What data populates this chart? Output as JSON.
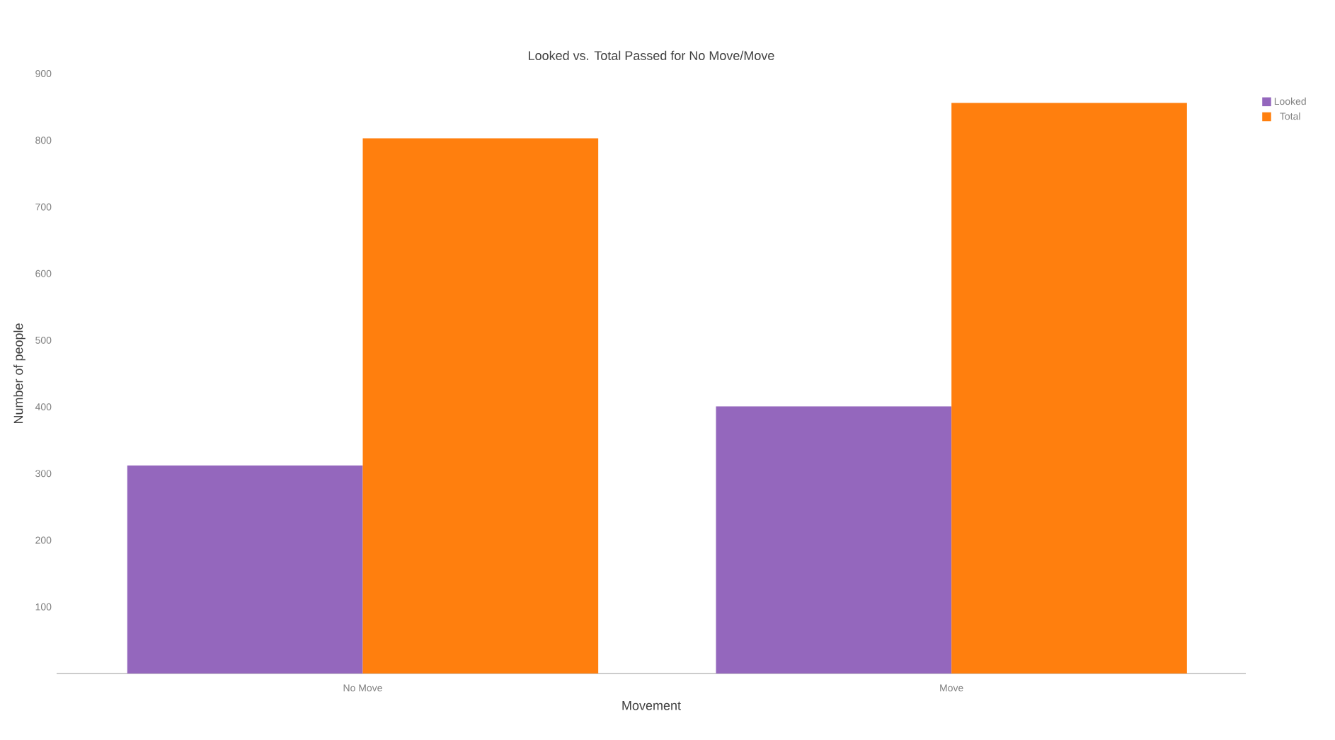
{
  "chart_data": {
    "type": "bar",
    "title": "Looked vs. Total Passed for No Move/Move",
    "xlabel": "Movement",
    "ylabel": "Number of people",
    "categories": [
      "No Move",
      "Move"
    ],
    "series": [
      {
        "name": "Looked",
        "color": "#9467bd",
        "values": [
          312,
          401
        ]
      },
      {
        "name": "Total",
        "color": "#ff7f0e",
        "values": [
          803,
          856
        ]
      }
    ],
    "ylim": [
      0,
      900
    ],
    "yticks": [
      100,
      200,
      300,
      400,
      500,
      600,
      700,
      800,
      900
    ],
    "legend": "top right"
  }
}
